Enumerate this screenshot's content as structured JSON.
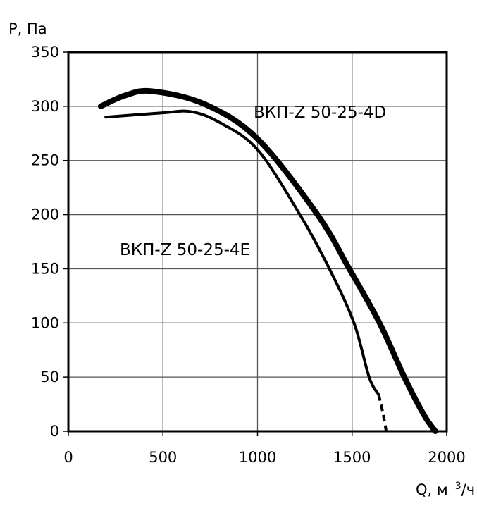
{
  "chart_data": {
    "type": "line",
    "title": "",
    "xlabel": "Q, м",
    "xlabel_sup": "3",
    "xlabel_suffix": "/ч",
    "ylabel": "P, Па",
    "xlim": [
      0,
      2000
    ],
    "ylim": [
      0,
      350
    ],
    "xticks": [
      0,
      500,
      1000,
      1500,
      2000
    ],
    "yticks": [
      0,
      50,
      100,
      150,
      200,
      250,
      300,
      350
    ],
    "grid": true,
    "series": [
      {
        "name": "ВКП-Z 50-25-4D",
        "weight": "thick",
        "x": [
          171,
          300,
          440,
          720,
          1000,
          1317,
          1485,
          1645,
          1776,
          1880,
          1940
        ],
        "y": [
          300,
          310,
          314,
          302,
          270,
          200,
          150,
          100,
          50,
          15,
          0
        ]
      },
      {
        "name": "ВКП-Z 50-25-4E",
        "weight": "thin",
        "x": [
          198,
          500,
          650,
          800,
          1000,
          1224,
          1380,
          1510,
          1590,
          1640
        ],
        "y": [
          290,
          294,
          295,
          285,
          260,
          200,
          150,
          100,
          50,
          34
        ],
        "dashed_extension": {
          "x": [
            1640,
            1680
          ],
          "y": [
            34,
            0
          ]
        }
      }
    ]
  }
}
